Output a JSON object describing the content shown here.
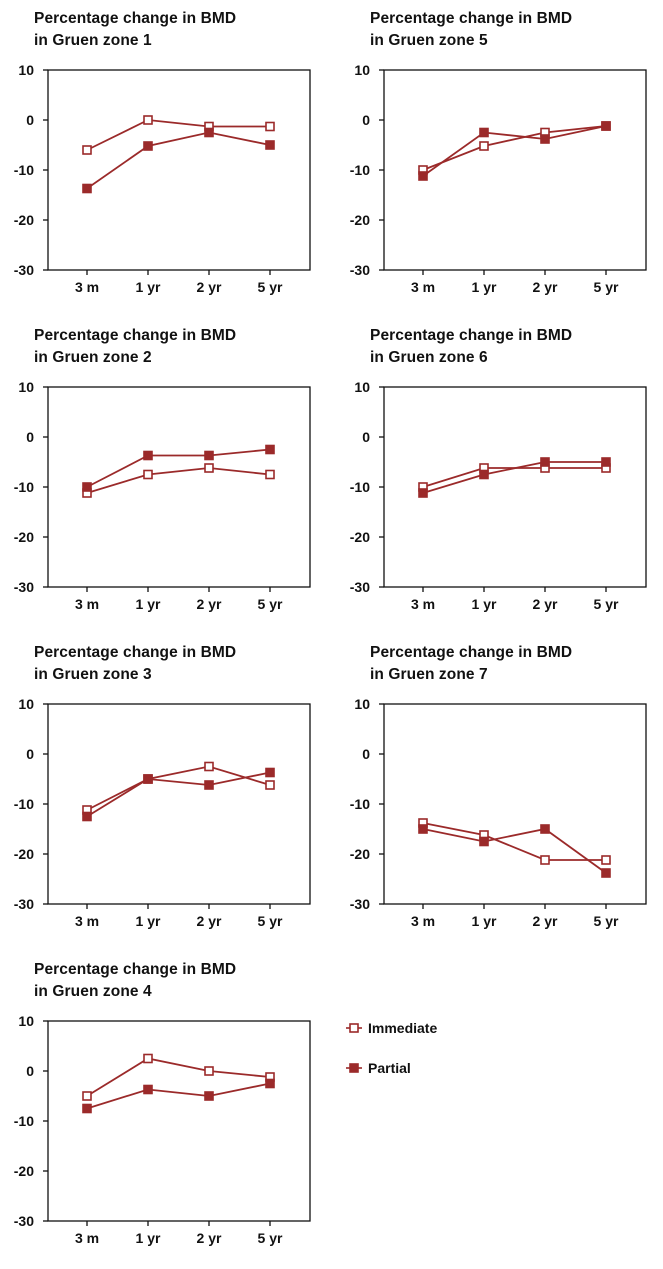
{
  "colors": {
    "series": "#9b2a2a",
    "axis": "#111111",
    "marker_fill_open": "#ffffff"
  },
  "legend": {
    "items": [
      {
        "label": "Immediate",
        "marker": "open-square"
      },
      {
        "label": "Partial",
        "marker": "filled-square"
      }
    ]
  },
  "chart_data": [
    {
      "type": "line",
      "title": "Percentage change in BMD\nin Gruen zone 1",
      "categories": [
        "3 m",
        "1 yr",
        "2 yr",
        "5 yr"
      ],
      "ylim": [
        -30,
        10
      ],
      "yticks": [
        10,
        0,
        -10,
        -20,
        -30
      ],
      "series": [
        {
          "name": "Immediate",
          "values": [
            -6,
            0,
            -1.3,
            -1.3
          ]
        },
        {
          "name": "Partial",
          "values": [
            -13.7,
            -5.2,
            -2.5,
            -5
          ]
        }
      ]
    },
    {
      "type": "line",
      "title": "Percentage change in BMD\nin Gruen zone 2",
      "categories": [
        "3 m",
        "1 yr",
        "2 yr",
        "5 yr"
      ],
      "ylim": [
        -30,
        10
      ],
      "yticks": [
        10,
        0,
        -10,
        -20,
        -30
      ],
      "series": [
        {
          "name": "Immediate",
          "values": [
            -11.2,
            -7.5,
            -6.2,
            -7.5
          ]
        },
        {
          "name": "Partial",
          "values": [
            -10,
            -3.7,
            -3.7,
            -2.5
          ]
        }
      ]
    },
    {
      "type": "line",
      "title": "Percentage change in BMD\nin Gruen zone 3",
      "categories": [
        "3 m",
        "1 yr",
        "2 yr",
        "5 yr"
      ],
      "ylim": [
        -30,
        10
      ],
      "yticks": [
        10,
        0,
        -10,
        -20,
        -30
      ],
      "series": [
        {
          "name": "Immediate",
          "values": [
            -11.2,
            -5,
            -2.5,
            -6.2
          ]
        },
        {
          "name": "Partial",
          "values": [
            -12.5,
            -5,
            -6.2,
            -3.7
          ]
        }
      ]
    },
    {
      "type": "line",
      "title": "Percentage change in BMD\nin Gruen zone 4",
      "categories": [
        "3 m",
        "1 yr",
        "2 yr",
        "5 yr"
      ],
      "ylim": [
        -30,
        10
      ],
      "yticks": [
        10,
        0,
        -10,
        -20,
        -30
      ],
      "series": [
        {
          "name": "Immediate",
          "values": [
            -5,
            2.5,
            0,
            -1.2
          ]
        },
        {
          "name": "Partial",
          "values": [
            -7.5,
            -3.7,
            -5,
            -2.5
          ]
        }
      ]
    },
    {
      "type": "line",
      "title": "Percentage change in BMD\nin Gruen zone 5",
      "categories": [
        "3 m",
        "1 yr",
        "2 yr",
        "5 yr"
      ],
      "ylim": [
        -30,
        10
      ],
      "yticks": [
        10,
        0,
        -10,
        -20,
        -30
      ],
      "series": [
        {
          "name": "Immediate",
          "values": [
            -10,
            -5.2,
            -2.5,
            -1.2
          ]
        },
        {
          "name": "Partial",
          "values": [
            -11.2,
            -2.5,
            -3.8,
            -1.2
          ]
        }
      ]
    },
    {
      "type": "line",
      "title": "Percentage change in BMD\nin Gruen zone 6",
      "categories": [
        "3 m",
        "1 yr",
        "2 yr",
        "5 yr"
      ],
      "ylim": [
        -30,
        10
      ],
      "yticks": [
        10,
        0,
        -10,
        -20,
        -30
      ],
      "series": [
        {
          "name": "Immediate",
          "values": [
            -10,
            -6.2,
            -6.2,
            -6.2
          ]
        },
        {
          "name": "Partial",
          "values": [
            -11.2,
            -7.5,
            -5,
            -5
          ]
        }
      ]
    },
    {
      "type": "line",
      "title": "Percentage change in BMD\nin Gruen zone 7",
      "categories": [
        "3 m",
        "1 yr",
        "2 yr",
        "5 yr"
      ],
      "ylim": [
        -30,
        10
      ],
      "yticks": [
        10,
        0,
        -10,
        -20,
        -30
      ],
      "series": [
        {
          "name": "Immediate",
          "values": [
            -13.8,
            -16.2,
            -21.2,
            -21.2
          ]
        },
        {
          "name": "Partial",
          "values": [
            -15,
            -17.5,
            -15,
            -23.8
          ]
        }
      ]
    }
  ]
}
